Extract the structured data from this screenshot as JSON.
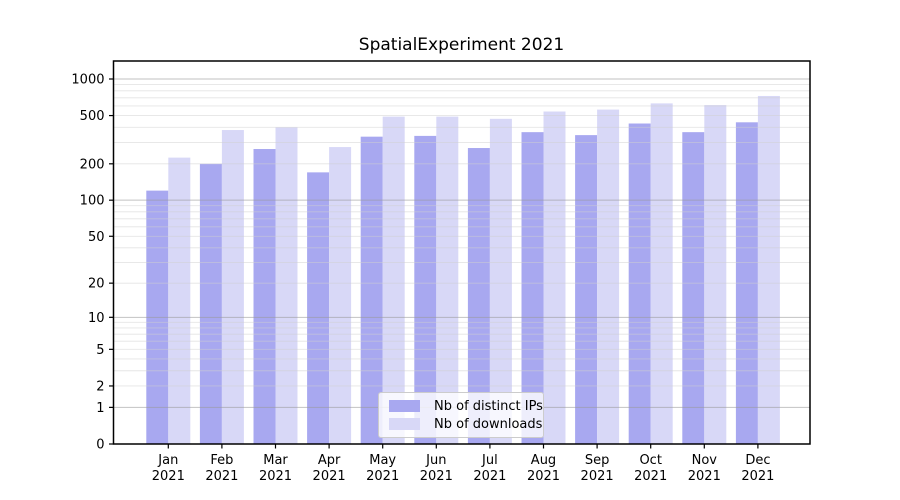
{
  "chart_data": {
    "type": "bar",
    "title": "SpatialExperiment 2021",
    "categories": [
      "Jan",
      "Feb",
      "Mar",
      "Apr",
      "May",
      "Jun",
      "Jul",
      "Aug",
      "Sep",
      "Oct",
      "Nov",
      "Dec"
    ],
    "x_tick_year": "2021",
    "series": [
      {
        "name": "Nb of distinct IPs",
        "color": "#a8a8f0",
        "values": [
          120,
          200,
          265,
          170,
          335,
          340,
          270,
          365,
          345,
          430,
          365,
          440
        ]
      },
      {
        "name": "Nb of downloads",
        "color": "#d8d8f7",
        "values": [
          225,
          380,
          400,
          275,
          490,
          490,
          470,
          540,
          560,
          630,
          610,
          725
        ]
      }
    ],
    "yscale": "log1p",
    "ylim": [
      0,
      1400
    ],
    "y_ticks": [
      0,
      1,
      2,
      5,
      10,
      20,
      50,
      100,
      200,
      500,
      1000
    ],
    "y_major_gridlines": [
      1,
      10,
      100,
      1000
    ],
    "y_minor_gridlines": [
      2,
      3,
      4,
      5,
      6,
      7,
      8,
      9,
      20,
      30,
      40,
      50,
      60,
      70,
      80,
      90,
      200,
      300,
      400,
      500,
      600,
      700,
      800,
      900
    ],
    "grid": true,
    "legend": {
      "position": "lower-center"
    },
    "colors": {
      "grid_major": "#9a9a9a",
      "grid_minor": "#cfcfcf",
      "spine": "#000000",
      "text": "#000000",
      "legend_border": "#cccccc"
    }
  }
}
